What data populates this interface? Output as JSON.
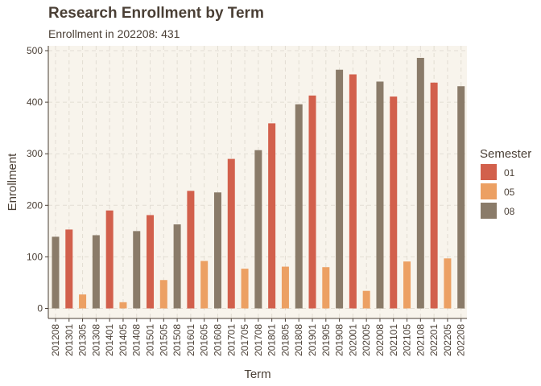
{
  "chart_data": {
    "type": "bar",
    "title": "Research Enrollment by Term",
    "subtitle": "Enrollment in 202208: 431",
    "xlabel": "Term",
    "ylabel": "Enrollment",
    "ylim": [
      0,
      500
    ],
    "yticks": [
      0,
      100,
      200,
      300,
      400,
      500
    ],
    "grid": true,
    "legend": {
      "title": "Semester",
      "position": "right"
    },
    "categories": [
      "201208",
      "201301",
      "201305",
      "201308",
      "201401",
      "201405",
      "201408",
      "201501",
      "201505",
      "201508",
      "201601",
      "201605",
      "201608",
      "201701",
      "201705",
      "201708",
      "201801",
      "201805",
      "201808",
      "201901",
      "201905",
      "201908",
      "202001",
      "202005",
      "202008",
      "202101",
      "202105",
      "202108",
      "202201",
      "202205",
      "202208"
    ],
    "values": [
      139,
      153,
      27,
      142,
      190,
      12,
      150,
      181,
      55,
      163,
      228,
      92,
      225,
      290,
      77,
      307,
      359,
      81,
      396,
      413,
      80,
      463,
      454,
      34,
      440,
      411,
      91,
      486,
      438,
      97,
      431
    ],
    "semester": [
      "08",
      "01",
      "05",
      "08",
      "01",
      "05",
      "08",
      "01",
      "05",
      "08",
      "01",
      "05",
      "08",
      "01",
      "05",
      "08",
      "01",
      "05",
      "08",
      "01",
      "05",
      "08",
      "01",
      "05",
      "08",
      "01",
      "05",
      "08",
      "01",
      "05",
      "08"
    ],
    "series": [
      {
        "name": "01",
        "color": "#d2604c"
      },
      {
        "name": "05",
        "color": "#eca063"
      },
      {
        "name": "08",
        "color": "#8a7b69"
      }
    ],
    "panel_background": "#f8f4ec",
    "grid_color": "#e2ddd3"
  }
}
